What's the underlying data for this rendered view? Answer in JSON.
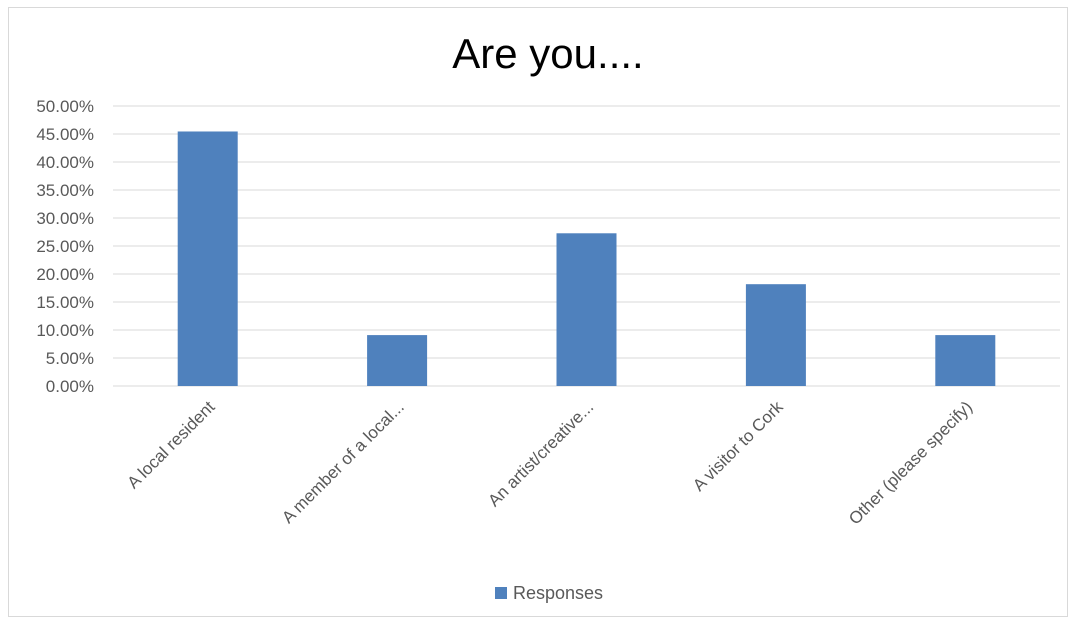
{
  "chart_data": {
    "type": "bar",
    "title": "Are you....",
    "categories": [
      "A local resident",
      "A member of a local...",
      "An artist/creative...",
      "A visitor to Cork",
      "Other (please specify)"
    ],
    "series": [
      {
        "name": "Responses",
        "values": [
          45.45,
          9.09,
          27.27,
          18.18,
          9.09
        ],
        "color": "#4f81bd"
      }
    ],
    "ylim": [
      0,
      50
    ],
    "yticks": [
      0,
      5,
      10,
      15,
      20,
      25,
      30,
      35,
      40,
      45,
      50
    ],
    "ytick_labels": [
      "0.00%",
      "5.00%",
      "10.00%",
      "15.00%",
      "20.00%",
      "25.00%",
      "30.00%",
      "35.00%",
      "40.00%",
      "45.00%",
      "50.00%"
    ],
    "xlabel": "",
    "ylabel": "",
    "grid": true,
    "gridline_color": "#d9d9d9",
    "legend_position": "bottom"
  }
}
